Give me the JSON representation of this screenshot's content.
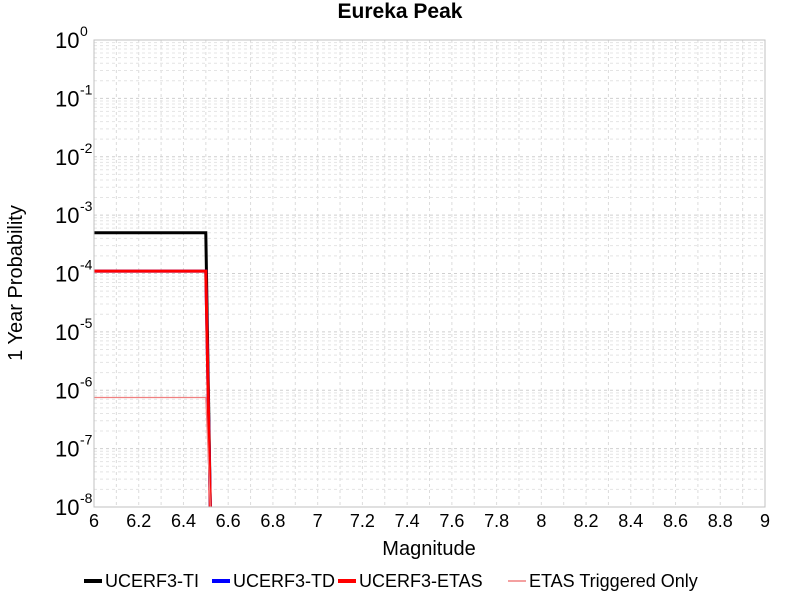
{
  "chart_data": {
    "type": "line",
    "title": "Eureka Peak",
    "xlabel": "Magnitude",
    "ylabel": "1 Year Probability",
    "xlim": [
      6,
      9
    ],
    "ylim": [
      1e-08,
      1
    ],
    "yscale": "log",
    "grid": true,
    "legend_position": "bottom",
    "x_ticks": [
      "6",
      "6.2",
      "6.4",
      "6.6",
      "6.8",
      "7",
      "7.2",
      "7.4",
      "7.6",
      "7.8",
      "8",
      "8.2",
      "8.4",
      "8.6",
      "8.8",
      "9"
    ],
    "y_ticks": [
      {
        "base": "10",
        "exp": "0"
      },
      {
        "base": "10",
        "exp": "-1"
      },
      {
        "base": "10",
        "exp": "-2"
      },
      {
        "base": "10",
        "exp": "-3"
      },
      {
        "base": "10",
        "exp": "-4"
      },
      {
        "base": "10",
        "exp": "-5"
      },
      {
        "base": "10",
        "exp": "-6"
      },
      {
        "base": "10",
        "exp": "-7"
      },
      {
        "base": "10",
        "exp": "-8"
      }
    ],
    "series": [
      {
        "name": "UCERF3-TI",
        "color": "#000000",
        "width": 3,
        "x": [
          6.0,
          6.5,
          6.52,
          6.54
        ],
        "y": [
          0.0005,
          0.0005,
          1e-08,
          5e-09
        ]
      },
      {
        "name": "UCERF3-TD",
        "color": "#0000ff",
        "width": 3,
        "x": [
          6.0,
          6.5,
          6.52,
          6.54
        ],
        "y": [
          0.00011,
          0.00011,
          1e-08,
          5e-09
        ]
      },
      {
        "name": "UCERF3-ETAS",
        "color": "#ff0000",
        "width": 3,
        "x": [
          6.0,
          6.5,
          6.52,
          6.54
        ],
        "y": [
          0.00011,
          0.00011,
          1e-08,
          5e-09
        ]
      },
      {
        "name": "ETAS Triggered Only",
        "color": "#f08080",
        "width": 1.2,
        "x": [
          6.0,
          6.5,
          6.52,
          6.54
        ],
        "y": [
          7.5e-07,
          7.5e-07,
          1e-08,
          5e-09
        ]
      }
    ]
  }
}
